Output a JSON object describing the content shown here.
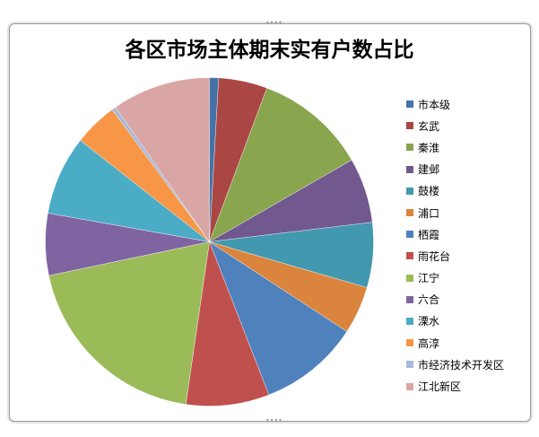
{
  "chart_data": {
    "type": "pie",
    "title": "各区市场主体期末实有户数占比",
    "legend_position": "right",
    "start_angle": "12 o'clock, clockwise",
    "unit": "percent (estimated)",
    "categories": [
      "市本级",
      "玄武",
      "秦淮",
      "建邺",
      "鼓楼",
      "浦口",
      "栖霞",
      "雨花台",
      "江宁",
      "六合",
      "溧水",
      "高淳",
      "市经济技术开发区",
      "江北新区"
    ],
    "values": [
      0.9,
      4.8,
      11.0,
      6.4,
      6.4,
      4.7,
      9.9,
      8.2,
      19.4,
      6.1,
      7.8,
      4.3,
      0.4,
      9.7
    ],
    "colors": [
      "#4572a7",
      "#aa4643",
      "#89a54e",
      "#71588f",
      "#4198af",
      "#db843d",
      "#4f81bd",
      "#c0504d",
      "#9bbb59",
      "#8064a2",
      "#4bacc6",
      "#f79646",
      "#a7b9d9",
      "#d9a6a5"
    ]
  }
}
